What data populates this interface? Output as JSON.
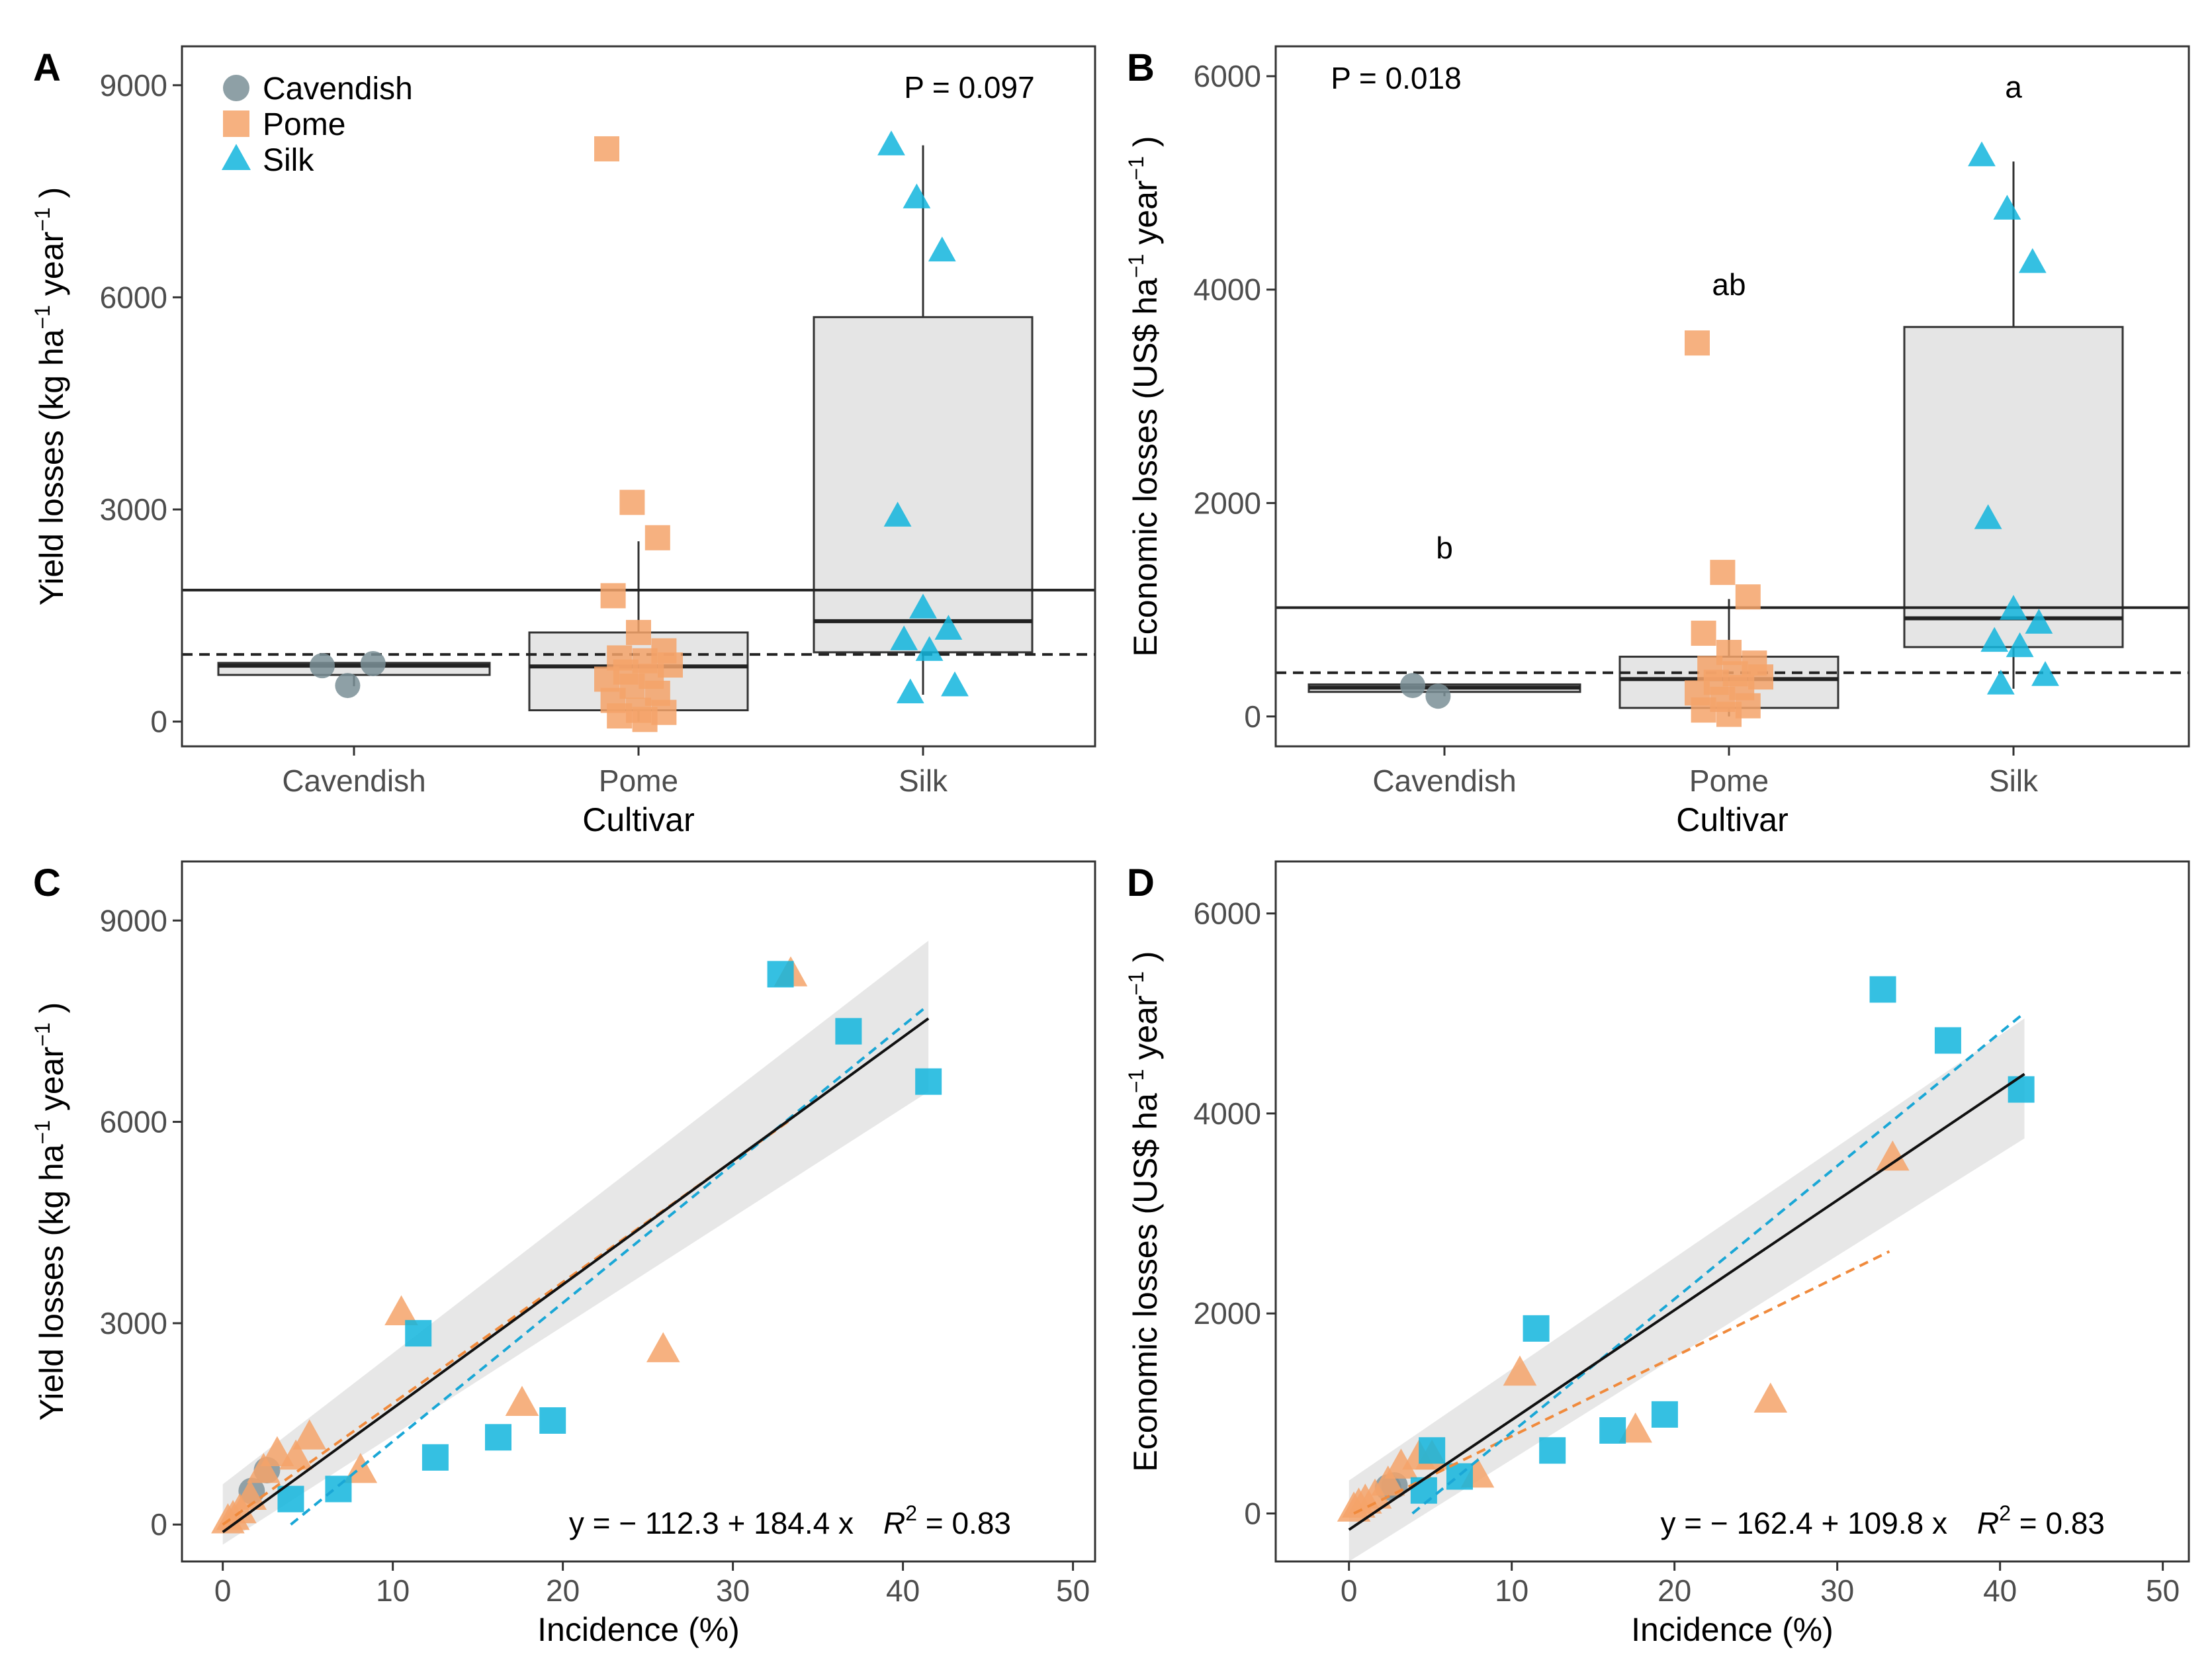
{
  "colors": {
    "cavendish": "#7a8f96",
    "pome": "#f5a36a",
    "silk": "#12b5dd",
    "box_fill": "#e5e5e5",
    "ribbon": "#e3e3e3",
    "line": "#000000",
    "silk_line": "#1aa7d6",
    "pome_line": "#f08a3c"
  },
  "legend": {
    "cavendish": "Cavendish",
    "pome": "Pome",
    "silk": "Silk"
  },
  "chart_data": [
    {
      "panel": "A",
      "type": "box",
      "ylabel": "Yield losses (kg ha⁻¹ year⁻¹)",
      "xlabel": "Cultivar",
      "categories": [
        "Cavendish",
        "Pome",
        "Silk"
      ],
      "yticks": [
        "0",
        "3000",
        "6000",
        "9000"
      ],
      "ylim": [
        -350,
        9550
      ],
      "annotation": "P = 0.097",
      "boxes": [
        {
          "name": "Cavendish",
          "q1": 660,
          "median": 790,
          "q3": 830,
          "lower": 500,
          "upper": 830
        },
        {
          "name": "Pome",
          "q1": 160,
          "median": 780,
          "q3": 1260,
          "lower": 0,
          "upper": 2550
        },
        {
          "name": "Silk",
          "q1": 980,
          "median": 1420,
          "q3": 5720,
          "lower": 380,
          "upper": 8150
        }
      ],
      "hlines": {
        "mean_all": 1860,
        "mean_dashed": 950
      },
      "points": {
        "Cavendish": [
          790,
          510,
          820
        ],
        "Pome": [
          8100,
          3100,
          2600,
          1780,
          1260,
          1000,
          900,
          860,
          800,
          700,
          640,
          600,
          500,
          400,
          300,
          160,
          130,
          80,
          30
        ],
        "Silk": [
          8150,
          7400,
          6650,
          2900,
          1600,
          1300,
          1150,
          1000,
          500,
          400
        ]
      }
    },
    {
      "panel": "B",
      "type": "box",
      "ylabel": "Economic losses (US$ ha⁻¹ year⁻¹)",
      "xlabel": "Cultivar",
      "categories": [
        "Cavendish",
        "Pome",
        "Silk"
      ],
      "yticks": [
        "0",
        "2000",
        "4000",
        "6000"
      ],
      "ylim": [
        -280,
        6280
      ],
      "annotation": "P = 0.018",
      "letters": [
        "b",
        "ab",
        "a"
      ],
      "letter_y": [
        1480,
        3950,
        5800
      ],
      "boxes": [
        {
          "name": "Cavendish",
          "q1": 230,
          "median": 270,
          "q3": 300,
          "lower": 190,
          "upper": 300
        },
        {
          "name": "Pome",
          "q1": 80,
          "median": 350,
          "q3": 560,
          "lower": 0,
          "upper": 1100
        },
        {
          "name": "Silk",
          "q1": 650,
          "median": 920,
          "q3": 3650,
          "lower": 260,
          "upper": 5200
        }
      ],
      "hlines": {
        "mean_all": 1020,
        "mean_dashed": 410
      },
      "points": {
        "Cavendish": [
          290,
          190
        ],
        "Pome": [
          3500,
          1350,
          1120,
          780,
          600,
          500,
          450,
          400,
          370,
          320,
          270,
          220,
          160,
          100,
          60,
          20
        ],
        "Silk": [
          5250,
          4750,
          4250,
          1850,
          1000,
          870,
          700,
          650,
          380,
          300
        ]
      }
    },
    {
      "panel": "C",
      "type": "scatter",
      "ylabel": "Yield losses (kg ha⁻¹ year⁻¹)",
      "xlabel": "Incidence (%)",
      "xticks": [
        "0",
        "10",
        "20",
        "30",
        "40",
        "50"
      ],
      "yticks": [
        "0",
        "3000",
        "6000",
        "9000"
      ],
      "xlim": [
        -2.4,
        51.3
      ],
      "ylim": [
        -550,
        9880
      ],
      "equation": "y = − 112.3 + 184.4 x",
      "r2_label": "R² = 0.83",
      "fit": {
        "intercept": -112.3,
        "slope": 184.4,
        "x_range": [
          0,
          41.5
        ]
      },
      "silk_fit": {
        "x": [
          4.0,
          41.3
        ],
        "y": [
          0,
          7700
        ]
      },
      "pome_fit": {
        "x": [
          0,
          33.5
        ],
        "y": [
          0,
          6050
        ]
      },
      "ribbon": {
        "x": [
          0,
          41.5
        ],
        "upper": [
          600,
          8700
        ],
        "lower": [
          -300,
          6450
        ]
      },
      "series": [
        {
          "name": "Cavendish",
          "x": [
            2.6,
            1.7
          ],
          "y": [
            810,
            500
          ]
        },
        {
          "name": "Pome",
          "x": [
            33.4,
            10.5,
            25.9,
            17.6,
            8.1,
            5.1,
            4.3,
            3.2,
            2.4,
            1.6,
            1.0,
            0.6,
            0.3
          ],
          "y": [
            8200,
            3150,
            2600,
            1800,
            800,
            1300,
            1000,
            1050,
            800,
            400,
            200,
            100,
            50
          ]
        },
        {
          "name": "Silk",
          "x": [
            32.8,
            36.8,
            41.5,
            11.5,
            12.5,
            16.2,
            19.4,
            6.8,
            4.0
          ],
          "y": [
            8200,
            7350,
            6600,
            2850,
            1000,
            1300,
            1550,
            530,
            380
          ]
        }
      ]
    },
    {
      "panel": "D",
      "type": "scatter",
      "ylabel": "Economic losses (US$ ha⁻¹ year⁻¹)",
      "xlabel": "Incidence (%)",
      "xticks": [
        "0",
        "10",
        "20",
        "30",
        "40",
        "50"
      ],
      "yticks": [
        "0",
        "2000",
        "4000",
        "6000"
      ],
      "xlim": [
        -4.5,
        51.6
      ],
      "ylim": [
        -480,
        6520
      ],
      "equation": "y = − 162.4 + 109.8 x",
      "r2_label": "R² = 0.83",
      "fit": {
        "intercept": -162.4,
        "slope": 109.8,
        "x_range": [
          0,
          41.5
        ]
      },
      "silk_fit": {
        "x": [
          3.9,
          41.3
        ],
        "y": [
          0,
          4980
        ]
      },
      "pome_fit": {
        "x": [
          0.3,
          33.2
        ],
        "y": [
          0,
          2620
        ]
      },
      "ribbon": {
        "x": [
          0,
          41.5
        ],
        "upper": [
          330,
          4950
        ],
        "lower": [
          -480,
          3750
        ]
      },
      "series": [
        {
          "name": "Cavendish",
          "x": [
            2.8,
            2.4
          ],
          "y": [
            280,
            260
          ]
        },
        {
          "name": "Pome",
          "x": [
            33.4,
            25.9,
            10.5,
            17.6,
            7.9,
            5.1,
            4.3,
            3.2,
            2.4,
            1.6,
            1.0,
            0.6,
            0.3
          ],
          "y": [
            3550,
            1130,
            1400,
            830,
            380,
            560,
            560,
            470,
            300,
            170,
            120,
            80,
            40
          ]
        },
        {
          "name": "Silk",
          "x": [
            32.8,
            36.8,
            41.3,
            11.5,
            12.5,
            16.2,
            19.4,
            5.1,
            6.8,
            4.6
          ],
          "y": [
            5240,
            4730,
            4240,
            1850,
            630,
            830,
            990,
            630,
            370,
            230
          ]
        }
      ]
    }
  ]
}
